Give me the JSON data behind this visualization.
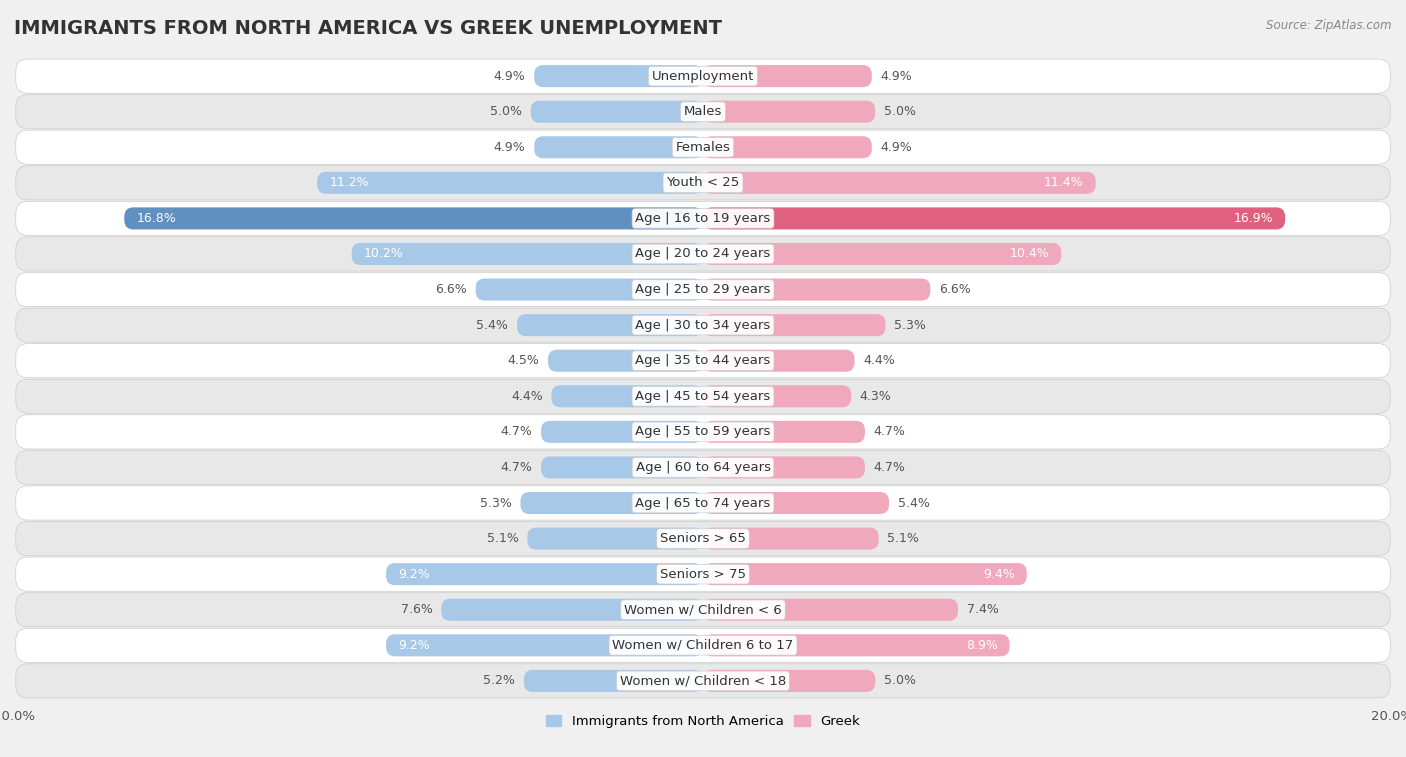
{
  "title": "IMMIGRANTS FROM NORTH AMERICA VS GREEK UNEMPLOYMENT",
  "source": "Source: ZipAtlas.com",
  "categories": [
    "Unemployment",
    "Males",
    "Females",
    "Youth < 25",
    "Age | 16 to 19 years",
    "Age | 20 to 24 years",
    "Age | 25 to 29 years",
    "Age | 30 to 34 years",
    "Age | 35 to 44 years",
    "Age | 45 to 54 years",
    "Age | 55 to 59 years",
    "Age | 60 to 64 years",
    "Age | 65 to 74 years",
    "Seniors > 65",
    "Seniors > 75",
    "Women w/ Children < 6",
    "Women w/ Children 6 to 17",
    "Women w/ Children < 18"
  ],
  "left_values": [
    4.9,
    5.0,
    4.9,
    11.2,
    16.8,
    10.2,
    6.6,
    5.4,
    4.5,
    4.4,
    4.7,
    4.7,
    5.3,
    5.1,
    9.2,
    7.6,
    9.2,
    5.2
  ],
  "right_values": [
    4.9,
    5.0,
    4.9,
    11.4,
    16.9,
    10.4,
    6.6,
    5.3,
    4.4,
    4.3,
    4.7,
    4.7,
    5.4,
    5.1,
    9.4,
    7.4,
    8.9,
    5.0
  ],
  "left_color": "#a8c8e8",
  "right_color": "#f0a8bc",
  "highlight_left_color": "#6090c0",
  "highlight_right_color": "#e06080",
  "highlight_row": 4,
  "xlim": 20.0,
  "bar_height": 0.62,
  "bg_color": "#f0f0f0",
  "row_bg_even": "#ffffff",
  "row_bg_odd": "#e8e8e8",
  "row_border_color": "#cccccc",
  "legend_left": "Immigrants from North America",
  "legend_right": "Greek",
  "title_fontsize": 14,
  "label_fontsize": 9.5,
  "value_fontsize": 9,
  "axis_fontsize": 9.5
}
